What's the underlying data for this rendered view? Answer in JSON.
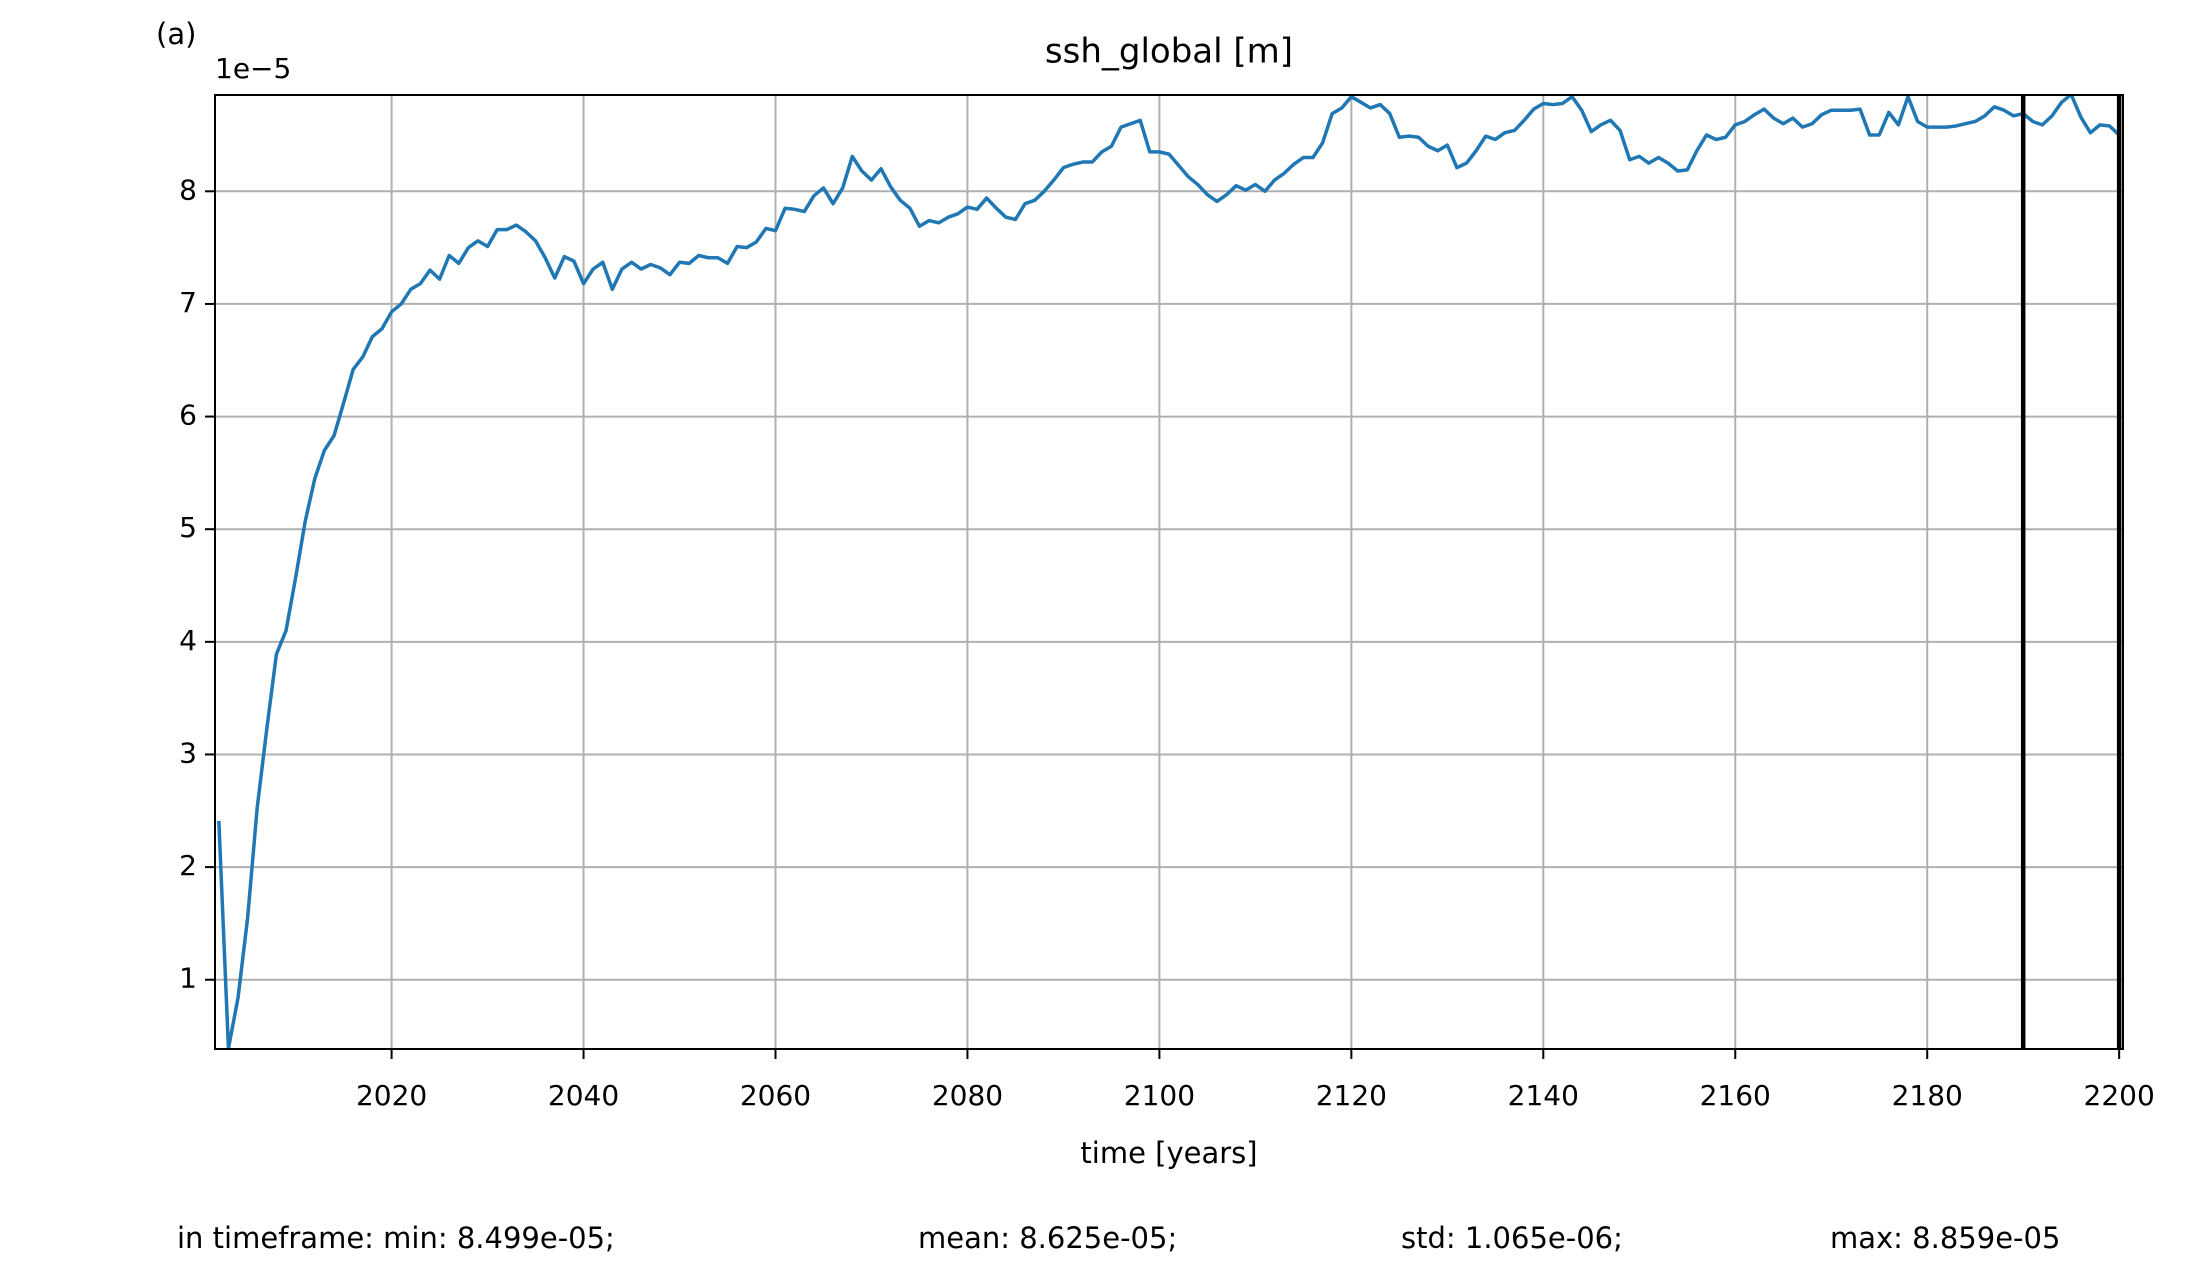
{
  "chart_data": {
    "type": "line",
    "panel_label": "(a)",
    "title": "ssh_global [m]",
    "xlabel": "time [years]",
    "y_offset_label": "1e−5",
    "stats": [
      "in timeframe: min: 8.499e-05;",
      "mean: 8.625e-05;",
      "std: 1.065e-06;",
      "max: 8.859e-05"
    ],
    "xlim": [
      2001.6,
      2200.4
    ],
    "ylim": [
      0.385,
      8.855
    ],
    "xticks": [
      2020,
      2040,
      2060,
      2080,
      2100,
      2120,
      2140,
      2160,
      2180,
      2200
    ],
    "yticks": [
      1,
      2,
      3,
      4,
      5,
      6,
      7,
      8
    ],
    "grid": true,
    "vlines": [
      2190,
      2200
    ],
    "vline_color": "#000000",
    "x": [
      2002,
      2003,
      2004,
      2005,
      2006,
      2007,
      2008,
      2009,
      2010,
      2011,
      2012,
      2013,
      2014,
      2015,
      2016,
      2017,
      2018,
      2019,
      2020,
      2021,
      2022,
      2023,
      2024,
      2025,
      2026,
      2027,
      2028,
      2029,
      2030,
      2031,
      2032,
      2033,
      2034,
      2035,
      2036,
      2037,
      2038,
      2039,
      2040,
      2041,
      2042,
      2043,
      2044,
      2045,
      2046,
      2047,
      2048,
      2049,
      2050,
      2051,
      2052,
      2053,
      2054,
      2055,
      2056,
      2057,
      2058,
      2059,
      2060,
      2061,
      2062,
      2063,
      2064,
      2065,
      2066,
      2067,
      2068,
      2069,
      2070,
      2071,
      2072,
      2073,
      2074,
      2075,
      2076,
      2077,
      2078,
      2079,
      2080,
      2081,
      2082,
      2083,
      2084,
      2085,
      2086,
      2087,
      2088,
      2089,
      2090,
      2091,
      2092,
      2093,
      2094,
      2095,
      2096,
      2097,
      2098,
      2099,
      2100,
      2101,
      2102,
      2103,
      2104,
      2105,
      2106,
      2107,
      2108,
      2109,
      2110,
      2111,
      2112,
      2113,
      2114,
      2115,
      2116,
      2117,
      2118,
      2119,
      2120,
      2121,
      2122,
      2123,
      2124,
      2125,
      2126,
      2127,
      2128,
      2129,
      2130,
      2131,
      2132,
      2133,
      2134,
      2135,
      2136,
      2137,
      2138,
      2139,
      2140,
      2141,
      2142,
      2143,
      2144,
      2145,
      2146,
      2147,
      2148,
      2149,
      2150,
      2151,
      2152,
      2153,
      2154,
      2155,
      2156,
      2157,
      2158,
      2159,
      2160,
      2161,
      2162,
      2163,
      2164,
      2165,
      2166,
      2167,
      2168,
      2169,
      2170,
      2171,
      2172,
      2173,
      2174,
      2175,
      2176,
      2177,
      2178,
      2179,
      2180,
      2181,
      2182,
      2183,
      2184,
      2185,
      2186,
      2187,
      2188,
      2189,
      2190,
      2191,
      2192,
      2193,
      2194,
      2195,
      2196,
      2197,
      2198,
      2199,
      2200
    ],
    "series": [
      {
        "name": "ssh_global",
        "color": "#1f77b4",
        "values": [
          2.41,
          0.39,
          0.84,
          1.55,
          2.53,
          3.23,
          3.89,
          4.1,
          4.57,
          5.07,
          5.45,
          5.7,
          5.83,
          6.12,
          6.42,
          6.53,
          6.71,
          6.78,
          6.93,
          7.0,
          7.13,
          7.18,
          7.3,
          7.22,
          7.43,
          7.36,
          7.5,
          7.56,
          7.51,
          7.66,
          7.66,
          7.7,
          7.64,
          7.56,
          7.41,
          7.23,
          7.42,
          7.38,
          7.18,
          7.31,
          7.37,
          7.13,
          7.31,
          7.37,
          7.31,
          7.35,
          7.32,
          7.26,
          7.37,
          7.36,
          7.43,
          7.41,
          7.41,
          7.36,
          7.51,
          7.5,
          7.55,
          7.67,
          7.65,
          7.85,
          7.84,
          7.82,
          7.96,
          8.03,
          7.89,
          8.03,
          8.31,
          8.18,
          8.1,
          8.2,
          8.04,
          7.92,
          7.85,
          7.69,
          7.74,
          7.72,
          7.77,
          7.8,
          7.86,
          7.84,
          7.94,
          7.85,
          7.77,
          7.75,
          7.89,
          7.92,
          8.0,
          8.1,
          8.21,
          8.24,
          8.26,
          8.26,
          8.35,
          8.4,
          8.57,
          8.6,
          8.63,
          8.35,
          8.35,
          8.33,
          8.23,
          8.13,
          8.06,
          7.97,
          7.91,
          7.97,
          8.05,
          8.01,
          8.06,
          8.0,
          8.1,
          8.16,
          8.24,
          8.3,
          8.3,
          8.43,
          8.69,
          8.74,
          8.84,
          8.79,
          8.74,
          8.77,
          8.69,
          8.48,
          8.49,
          8.48,
          8.4,
          8.36,
          8.41,
          8.21,
          8.25,
          8.36,
          8.49,
          8.46,
          8.52,
          8.54,
          8.63,
          8.73,
          8.78,
          8.77,
          8.78,
          8.84,
          8.72,
          8.53,
          8.59,
          8.63,
          8.54,
          8.28,
          8.31,
          8.25,
          8.3,
          8.25,
          8.18,
          8.19,
          8.36,
          8.5,
          8.46,
          8.48,
          8.59,
          8.62,
          8.68,
          8.73,
          8.65,
          8.6,
          8.65,
          8.57,
          8.6,
          8.68,
          8.72,
          8.72,
          8.72,
          8.73,
          8.5,
          8.5,
          8.7,
          8.59,
          8.84,
          8.62,
          8.57,
          8.57,
          8.57,
          8.58,
          8.6,
          8.62,
          8.67,
          8.75,
          8.72,
          8.67,
          8.69,
          8.62,
          8.59,
          8.67,
          8.79,
          8.86,
          8.66,
          8.52,
          8.59,
          8.58,
          8.5
        ]
      }
    ]
  }
}
